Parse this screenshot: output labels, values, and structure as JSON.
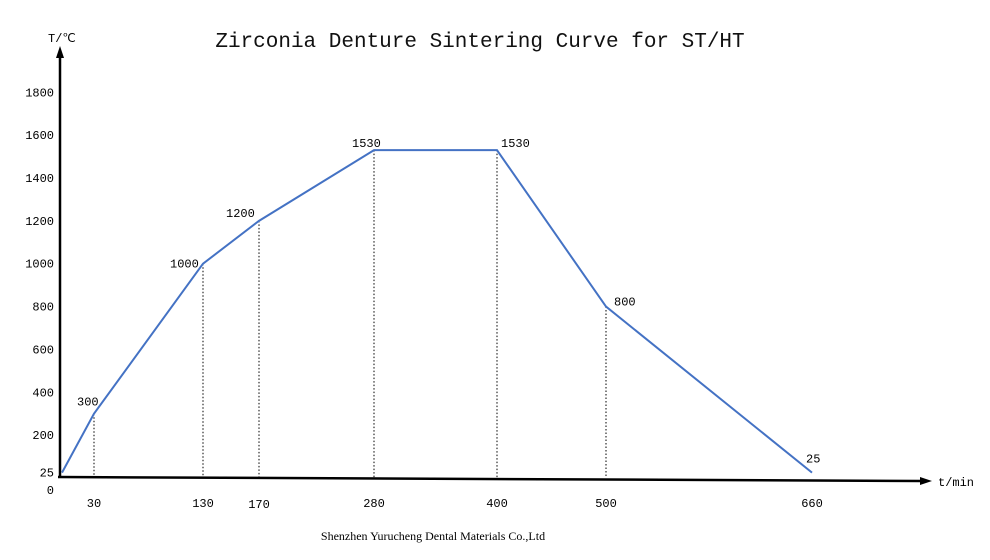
{
  "chart_data": {
    "type": "line",
    "title": "Zirconia Denture Sintering Curve for ST/HT",
    "xlabel": "t/min",
    "ylabel": "T/℃",
    "x_ticks": [
      "30",
      "130",
      "170",
      "280",
      "400",
      "500",
      "660"
    ],
    "y_ticks": [
      "0",
      "25",
      "200",
      "400",
      "600",
      "800",
      "1000",
      "1200",
      "1400",
      "1600",
      "1800"
    ],
    "x": [
      0,
      30,
      130,
      170,
      280,
      400,
      500,
      660
    ],
    "y": [
      25,
      300,
      1000,
      1200,
      1530,
      1530,
      800,
      25
    ],
    "point_labels": [
      "",
      "300",
      "1000",
      "1200",
      "1530",
      "1530",
      "800",
      "25"
    ],
    "line_color": "#4472C4",
    "grid": false,
    "drop_lines": "dotted"
  },
  "footer": "Shenzhen Yurucheng Dental Materials Co.,Ltd"
}
